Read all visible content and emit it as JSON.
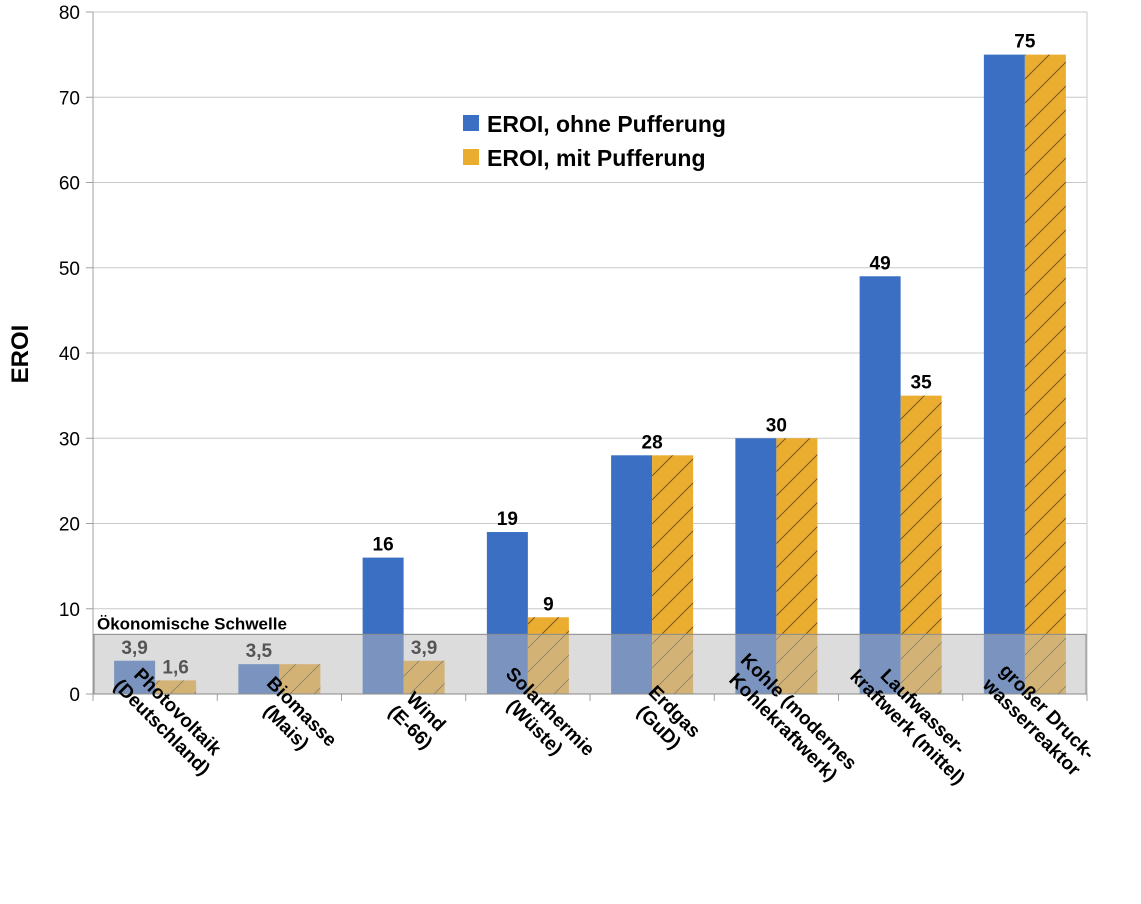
{
  "chart_data": {
    "type": "bar",
    "ylabel": "EROI",
    "xlabel": "",
    "ylim": [
      0,
      80
    ],
    "yticks": [
      0,
      10,
      20,
      30,
      40,
      50,
      60,
      70,
      80
    ],
    "grid": true,
    "legend_position": "top-center",
    "categories": [
      "Photovoltaik (Deutschland)",
      "Biomasse (Mais)",
      "Wind (E-66)",
      "Solarthermie (Wüste)",
      "Erdgas (GuD)",
      "Kohle (modernes Kohlekraftwerk)",
      "Laufwasser-kraftwerk (mittel)",
      "großer Druck-wasserreaktor"
    ],
    "category_lines": [
      [
        "Photovoltaik",
        "(Deutschland)"
      ],
      [
        "Biomasse",
        "(Mais)"
      ],
      [
        "Wind",
        "(E-66)"
      ],
      [
        "Solarthermie",
        "(Wüste)"
      ],
      [
        "Erdgas",
        "(GuD)"
      ],
      [
        "Kohle (modernes",
        "Kohlekraftwerk)"
      ],
      [
        "Laufwasser-",
        "kraftwerk (mittel)"
      ],
      [
        "großer Druck-",
        "wasserreaktor"
      ]
    ],
    "series": [
      {
        "name": "EROI, ohne Pufferung",
        "color": "#3a6fc4",
        "values": [
          3.9,
          3.5,
          16,
          19,
          28,
          30,
          49,
          75
        ],
        "labels": [
          "3,9",
          "3,5",
          "16",
          "19",
          "",
          "",
          "49",
          "75"
        ]
      },
      {
        "name": "EROI, mit Pufferung",
        "color": "#ebad30",
        "values": [
          1.6,
          3.5,
          3.9,
          9,
          28,
          30,
          35,
          75
        ],
        "labels": [
          "1,6",
          "",
          "3,9",
          "9",
          "28",
          "30",
          "35",
          ""
        ]
      }
    ],
    "shared_labels": [
      "",
      "",
      "",
      "",
      "28",
      "30",
      "",
      "75"
    ],
    "threshold": {
      "label": "Ökonomische Schwelle",
      "value": 7
    }
  }
}
